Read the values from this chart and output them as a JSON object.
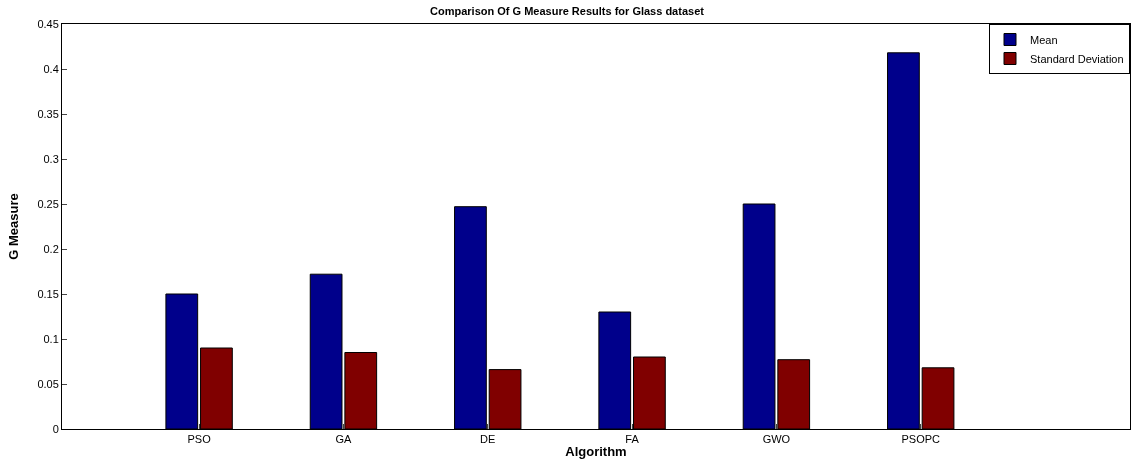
{
  "chart_data": {
    "type": "bar",
    "title": "Comparison Of G Measure Results for Glass dataset",
    "xlabel": "Algorithm",
    "ylabel": "G Measure",
    "categories": [
      "PSO",
      "GA",
      "DE",
      "FA",
      "GWO",
      "PSOPC"
    ],
    "series": [
      {
        "name": "Mean",
        "color": "#00008b",
        "values": [
          0.15,
          0.172,
          0.247,
          0.13,
          0.25,
          0.418
        ]
      },
      {
        "name": "Standard Deviation",
        "color": "#800000",
        "values": [
          0.09,
          0.085,
          0.066,
          0.08,
          0.077,
          0.068
        ]
      }
    ],
    "ylim": [
      0,
      0.45
    ],
    "yticks": [
      0,
      0.05,
      0.1,
      0.15,
      0.2,
      0.25,
      0.3,
      0.35,
      0.4,
      0.45
    ],
    "legend": "top right"
  }
}
